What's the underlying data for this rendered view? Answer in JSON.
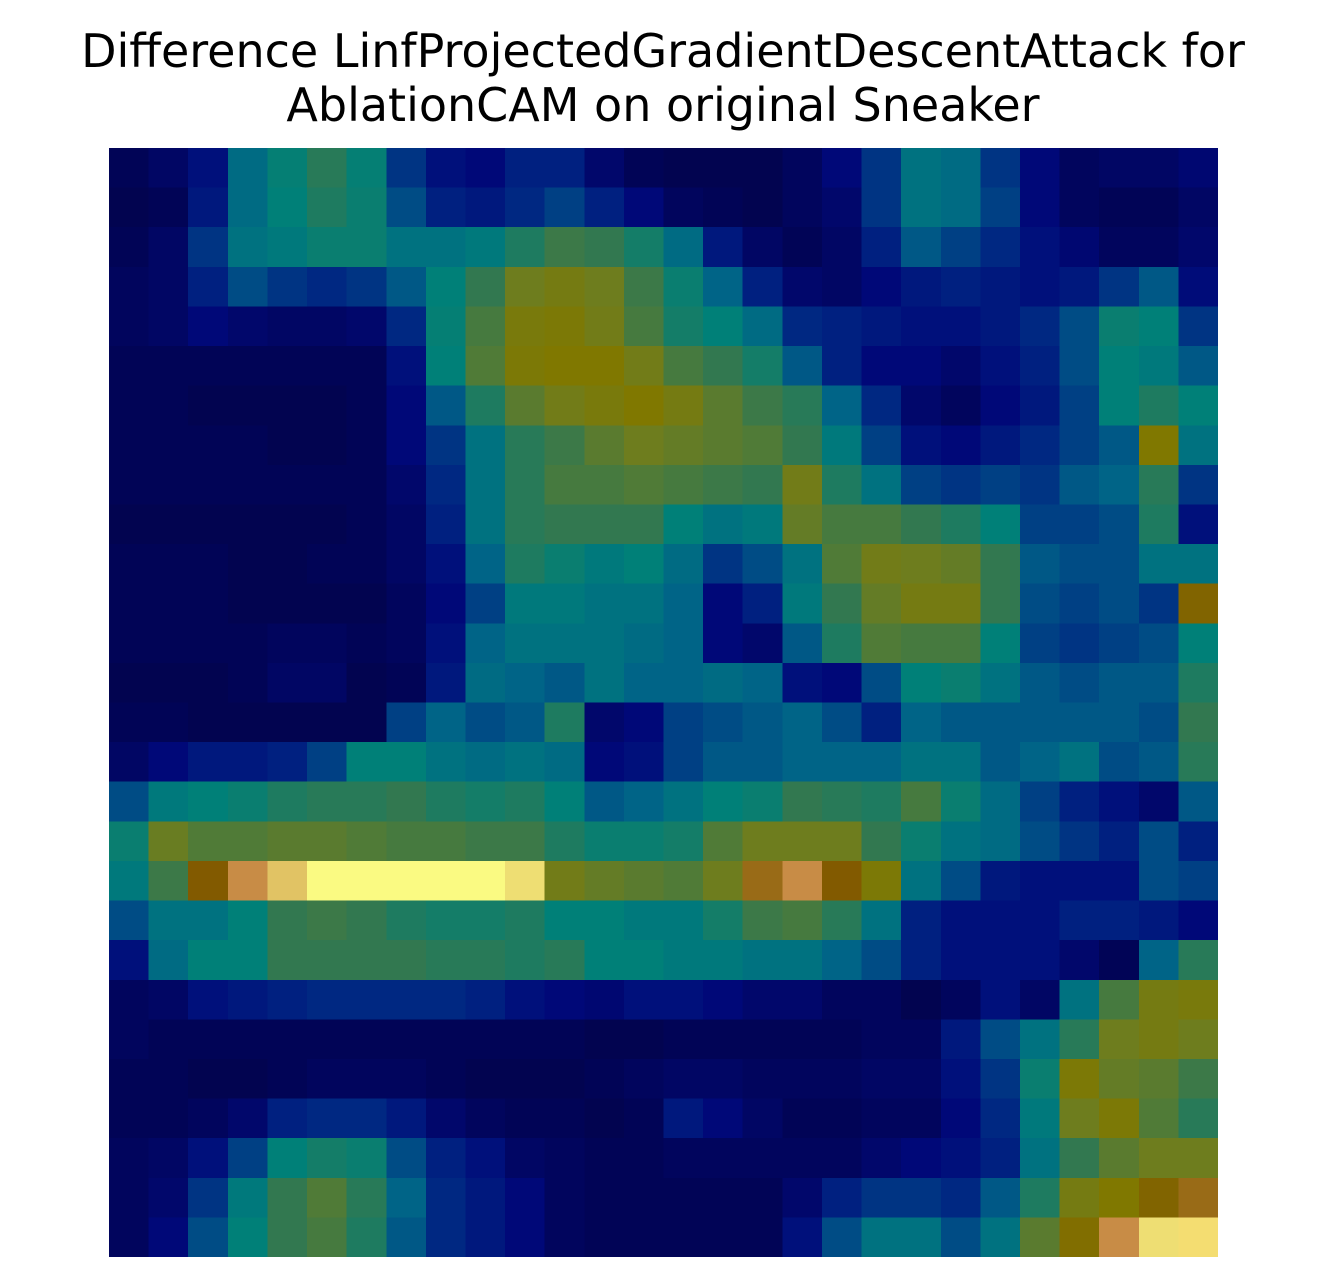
{
  "chart_data": {
    "type": "heatmap",
    "title_lines": [
      "Difference LinfProjectedGradientDescentAttack for",
      "AblationCAM on original Sneaker"
    ],
    "xlabel": "",
    "ylabel": "",
    "axes": "off",
    "grid": false,
    "legend": "none",
    "colormap": "jet",
    "value_range": [
      0,
      1
    ],
    "rows": 28,
    "cols": 28,
    "values": [
      [
        0.03,
        0.05,
        0.1,
        0.28,
        0.35,
        0.42,
        0.35,
        0.18,
        0.1,
        0.08,
        0.14,
        0.14,
        0.06,
        0.03,
        0.02,
        0.02,
        0.02,
        0.04,
        0.08,
        0.18,
        0.3,
        0.28,
        0.18,
        0.08,
        0.04,
        0.05,
        0.05,
        0.07
      ],
      [
        0.02,
        0.03,
        0.12,
        0.28,
        0.34,
        0.4,
        0.36,
        0.22,
        0.14,
        0.12,
        0.16,
        0.2,
        0.14,
        0.08,
        0.04,
        0.03,
        0.02,
        0.04,
        0.06,
        0.18,
        0.3,
        0.28,
        0.2,
        0.08,
        0.04,
        0.03,
        0.03,
        0.05
      ],
      [
        0.03,
        0.05,
        0.18,
        0.3,
        0.32,
        0.36,
        0.36,
        0.3,
        0.3,
        0.32,
        0.4,
        0.46,
        0.44,
        0.38,
        0.28,
        0.12,
        0.05,
        0.03,
        0.05,
        0.14,
        0.24,
        0.2,
        0.16,
        0.1,
        0.07,
        0.04,
        0.04,
        0.06
      ],
      [
        0.04,
        0.05,
        0.14,
        0.22,
        0.18,
        0.16,
        0.18,
        0.24,
        0.34,
        0.44,
        0.56,
        0.6,
        0.56,
        0.46,
        0.36,
        0.26,
        0.14,
        0.06,
        0.05,
        0.08,
        0.12,
        0.14,
        0.12,
        0.1,
        0.12,
        0.18,
        0.24,
        0.09
      ],
      [
        0.04,
        0.05,
        0.08,
        0.06,
        0.05,
        0.05,
        0.06,
        0.16,
        0.35,
        0.48,
        0.62,
        0.64,
        0.58,
        0.48,
        0.38,
        0.34,
        0.28,
        0.16,
        0.14,
        0.12,
        0.1,
        0.1,
        0.12,
        0.16,
        0.22,
        0.36,
        0.34,
        0.18
      ],
      [
        0.03,
        0.03,
        0.03,
        0.03,
        0.03,
        0.03,
        0.03,
        0.1,
        0.34,
        0.5,
        0.64,
        0.66,
        0.66,
        0.58,
        0.48,
        0.44,
        0.38,
        0.24,
        0.14,
        0.08,
        0.08,
        0.06,
        0.1,
        0.14,
        0.22,
        0.34,
        0.32,
        0.24
      ],
      [
        0.03,
        0.03,
        0.02,
        0.02,
        0.02,
        0.02,
        0.03,
        0.08,
        0.24,
        0.4,
        0.52,
        0.58,
        0.62,
        0.66,
        0.6,
        0.52,
        0.46,
        0.42,
        0.26,
        0.16,
        0.06,
        0.04,
        0.08,
        0.12,
        0.2,
        0.34,
        0.4,
        0.34
      ],
      [
        0.03,
        0.03,
        0.03,
        0.03,
        0.02,
        0.02,
        0.03,
        0.08,
        0.18,
        0.3,
        0.42,
        0.46,
        0.52,
        0.56,
        0.54,
        0.52,
        0.5,
        0.44,
        0.32,
        0.2,
        0.1,
        0.08,
        0.12,
        0.16,
        0.2,
        0.24,
        0.66,
        0.3
      ],
      [
        0.03,
        0.03,
        0.03,
        0.03,
        0.03,
        0.03,
        0.03,
        0.06,
        0.16,
        0.3,
        0.42,
        0.48,
        0.48,
        0.5,
        0.48,
        0.46,
        0.44,
        0.58,
        0.4,
        0.3,
        0.2,
        0.18,
        0.2,
        0.18,
        0.24,
        0.26,
        0.42,
        0.18
      ],
      [
        0.02,
        0.02,
        0.02,
        0.02,
        0.02,
        0.02,
        0.03,
        0.05,
        0.14,
        0.3,
        0.42,
        0.44,
        0.44,
        0.44,
        0.34,
        0.3,
        0.32,
        0.54,
        0.48,
        0.48,
        0.44,
        0.4,
        0.34,
        0.2,
        0.2,
        0.22,
        0.4,
        0.1
      ],
      [
        0.03,
        0.03,
        0.03,
        0.02,
        0.02,
        0.03,
        0.03,
        0.05,
        0.1,
        0.26,
        0.4,
        0.36,
        0.32,
        0.34,
        0.28,
        0.18,
        0.22,
        0.3,
        0.5,
        0.58,
        0.56,
        0.54,
        0.44,
        0.24,
        0.22,
        0.22,
        0.3,
        0.3
      ],
      [
        0.03,
        0.03,
        0.03,
        0.02,
        0.02,
        0.02,
        0.02,
        0.04,
        0.08,
        0.2,
        0.32,
        0.32,
        0.3,
        0.3,
        0.26,
        0.08,
        0.14,
        0.32,
        0.44,
        0.54,
        0.6,
        0.6,
        0.44,
        0.22,
        0.2,
        0.22,
        0.18,
        0.7
      ],
      [
        0.03,
        0.03,
        0.03,
        0.03,
        0.04,
        0.04,
        0.03,
        0.04,
        0.1,
        0.26,
        0.3,
        0.3,
        0.3,
        0.28,
        0.26,
        0.08,
        0.06,
        0.24,
        0.4,
        0.5,
        0.48,
        0.48,
        0.34,
        0.2,
        0.18,
        0.2,
        0.22,
        0.34
      ],
      [
        0.02,
        0.02,
        0.02,
        0.03,
        0.05,
        0.05,
        0.02,
        0.03,
        0.12,
        0.28,
        0.26,
        0.24,
        0.3,
        0.26,
        0.26,
        0.28,
        0.26,
        0.1,
        0.08,
        0.22,
        0.34,
        0.36,
        0.3,
        0.24,
        0.22,
        0.24,
        0.24,
        0.4
      ],
      [
        0.03,
        0.03,
        0.02,
        0.02,
        0.02,
        0.02,
        0.02,
        0.2,
        0.26,
        0.22,
        0.24,
        0.4,
        0.06,
        0.08,
        0.2,
        0.22,
        0.24,
        0.26,
        0.22,
        0.14,
        0.26,
        0.24,
        0.24,
        0.24,
        0.24,
        0.24,
        0.22,
        0.44
      ],
      [
        0.05,
        0.08,
        0.12,
        0.12,
        0.14,
        0.2,
        0.34,
        0.34,
        0.3,
        0.28,
        0.3,
        0.28,
        0.08,
        0.1,
        0.2,
        0.24,
        0.24,
        0.26,
        0.26,
        0.26,
        0.3,
        0.3,
        0.24,
        0.26,
        0.3,
        0.22,
        0.24,
        0.42
      ],
      [
        0.22,
        0.32,
        0.34,
        0.36,
        0.4,
        0.42,
        0.42,
        0.44,
        0.4,
        0.38,
        0.4,
        0.34,
        0.24,
        0.26,
        0.3,
        0.34,
        0.36,
        0.44,
        0.42,
        0.4,
        0.48,
        0.36,
        0.28,
        0.2,
        0.14,
        0.1,
        0.06,
        0.24
      ],
      [
        0.36,
        0.55,
        0.5,
        0.5,
        0.52,
        0.52,
        0.5,
        0.48,
        0.48,
        0.46,
        0.46,
        0.4,
        0.36,
        0.36,
        0.38,
        0.5,
        0.56,
        0.56,
        0.56,
        0.44,
        0.36,
        0.3,
        0.28,
        0.22,
        0.18,
        0.14,
        0.22,
        0.14
      ],
      [
        0.32,
        0.46,
        0.72,
        0.78,
        0.82,
        0.86,
        0.86,
        0.86,
        0.86,
        0.86,
        0.84,
        0.58,
        0.54,
        0.52,
        0.5,
        0.56,
        0.74,
        0.78,
        0.72,
        0.64,
        0.3,
        0.22,
        0.12,
        0.1,
        0.1,
        0.1,
        0.22,
        0.2
      ],
      [
        0.22,
        0.3,
        0.3,
        0.34,
        0.44,
        0.46,
        0.44,
        0.4,
        0.38,
        0.38,
        0.4,
        0.34,
        0.34,
        0.32,
        0.32,
        0.38,
        0.46,
        0.48,
        0.42,
        0.3,
        0.14,
        0.1,
        0.1,
        0.1,
        0.14,
        0.14,
        0.12,
        0.08
      ],
      [
        0.1,
        0.28,
        0.34,
        0.34,
        0.44,
        0.44,
        0.44,
        0.44,
        0.42,
        0.42,
        0.4,
        0.42,
        0.34,
        0.34,
        0.32,
        0.32,
        0.3,
        0.3,
        0.26,
        0.22,
        0.14,
        0.1,
        0.1,
        0.1,
        0.06,
        0.03,
        0.26,
        0.42
      ],
      [
        0.04,
        0.05,
        0.1,
        0.12,
        0.14,
        0.16,
        0.16,
        0.16,
        0.16,
        0.14,
        0.1,
        0.08,
        0.07,
        0.1,
        0.1,
        0.08,
        0.06,
        0.06,
        0.04,
        0.04,
        0.02,
        0.04,
        0.1,
        0.05,
        0.3,
        0.48,
        0.6,
        0.62
      ],
      [
        0.04,
        0.03,
        0.03,
        0.03,
        0.03,
        0.03,
        0.03,
        0.03,
        0.03,
        0.03,
        0.03,
        0.03,
        0.02,
        0.02,
        0.03,
        0.03,
        0.03,
        0.03,
        0.03,
        0.04,
        0.04,
        0.12,
        0.22,
        0.3,
        0.42,
        0.56,
        0.6,
        0.56
      ],
      [
        0.03,
        0.03,
        0.02,
        0.02,
        0.03,
        0.04,
        0.04,
        0.04,
        0.03,
        0.02,
        0.02,
        0.02,
        0.03,
        0.04,
        0.05,
        0.05,
        0.04,
        0.04,
        0.04,
        0.05,
        0.05,
        0.1,
        0.18,
        0.36,
        0.64,
        0.54,
        0.52,
        0.46
      ],
      [
        0.03,
        0.03,
        0.04,
        0.06,
        0.14,
        0.16,
        0.16,
        0.12,
        0.06,
        0.04,
        0.03,
        0.03,
        0.02,
        0.03,
        0.12,
        0.08,
        0.05,
        0.03,
        0.03,
        0.04,
        0.04,
        0.08,
        0.16,
        0.32,
        0.56,
        0.64,
        0.5,
        0.42
      ],
      [
        0.04,
        0.05,
        0.1,
        0.2,
        0.34,
        0.38,
        0.36,
        0.22,
        0.14,
        0.1,
        0.05,
        0.04,
        0.03,
        0.03,
        0.04,
        0.04,
        0.04,
        0.04,
        0.04,
        0.06,
        0.08,
        0.1,
        0.14,
        0.3,
        0.44,
        0.52,
        0.56,
        0.56
      ],
      [
        0.04,
        0.06,
        0.18,
        0.32,
        0.44,
        0.5,
        0.42,
        0.26,
        0.16,
        0.12,
        0.08,
        0.04,
        0.03,
        0.03,
        0.03,
        0.03,
        0.03,
        0.06,
        0.14,
        0.18,
        0.18,
        0.16,
        0.24,
        0.4,
        0.6,
        0.66,
        0.7,
        0.74
      ],
      [
        0.04,
        0.08,
        0.22,
        0.34,
        0.44,
        0.48,
        0.4,
        0.24,
        0.16,
        0.12,
        0.08,
        0.04,
        0.03,
        0.03,
        0.03,
        0.03,
        0.03,
        0.1,
        0.22,
        0.3,
        0.3,
        0.22,
        0.3,
        0.52,
        0.68,
        0.78,
        0.84,
        0.9
      ]
    ]
  }
}
